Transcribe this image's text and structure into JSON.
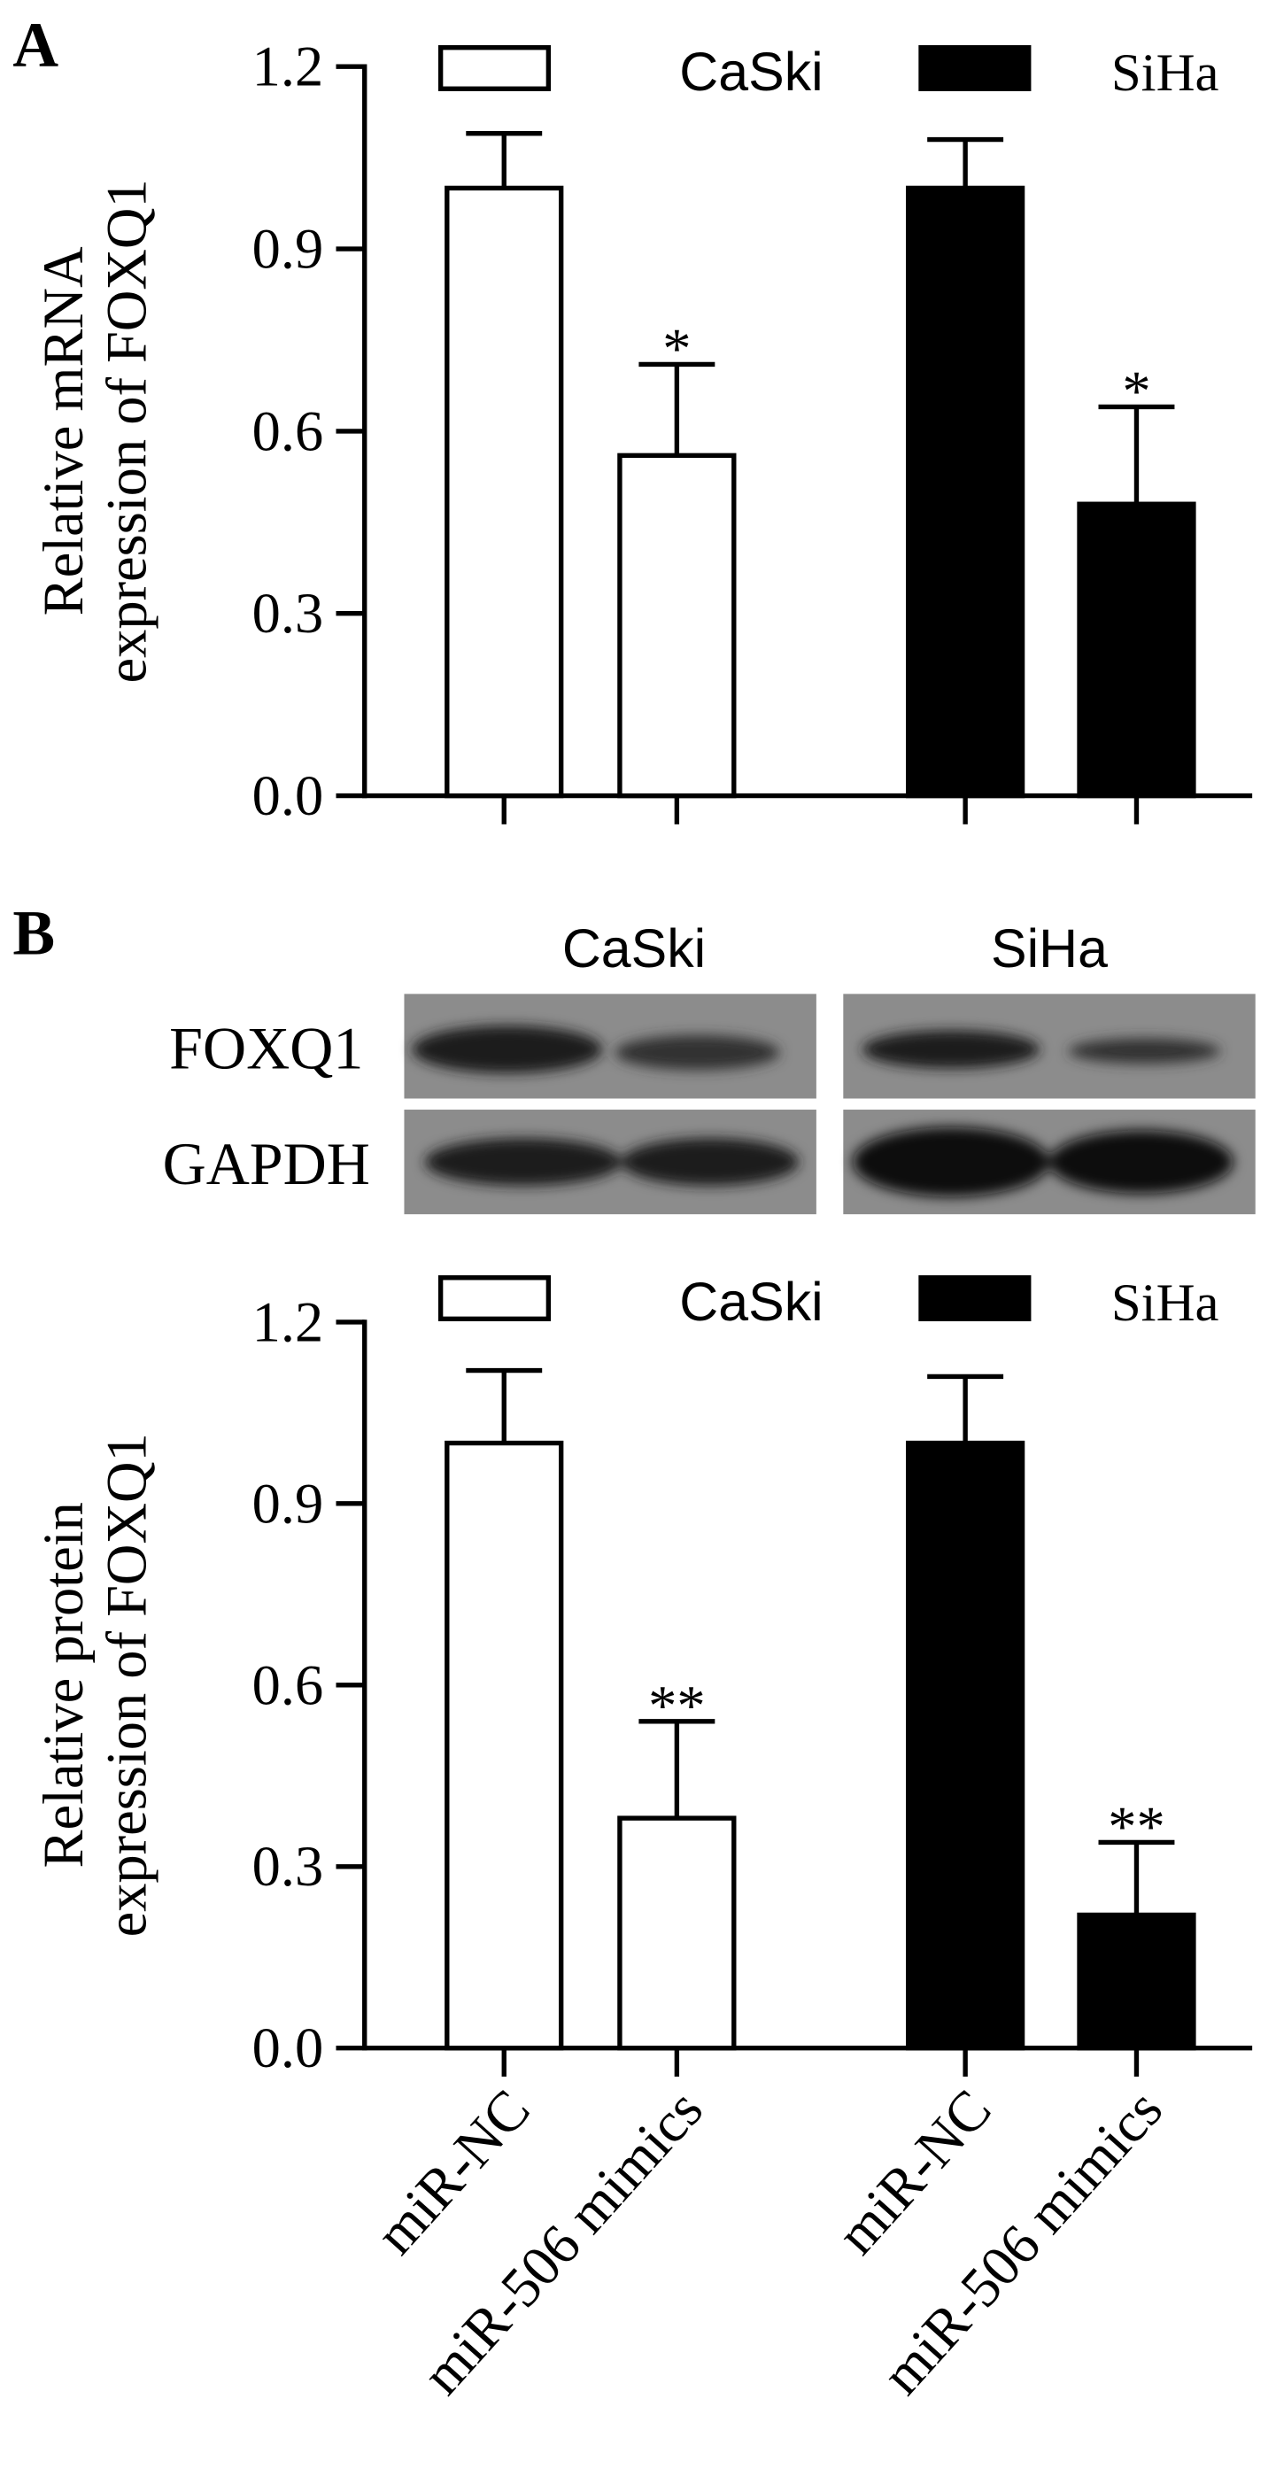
{
  "chart_data": [
    {
      "type": "bar",
      "panel_label": "A",
      "ylabel": [
        "Relative mRNA",
        "expression of FOXQ1"
      ],
      "categories": [
        null,
        null,
        null,
        null
      ],
      "series": [
        {
          "name": "CaSki",
          "color": "#ffffff",
          "values": [
            1.0,
            0.56,
            null,
            null
          ],
          "errors": [
            0.09,
            0.15,
            null,
            null
          ],
          "annotations": [
            null,
            "*",
            null,
            null
          ]
        },
        {
          "name": "SiHa",
          "color": "#000000",
          "values": [
            null,
            null,
            1.0,
            0.48
          ],
          "errors": [
            null,
            null,
            0.08,
            0.16
          ],
          "annotations": [
            null,
            null,
            null,
            "*"
          ]
        }
      ],
      "ylim": [
        0,
        1.2
      ],
      "yticks": [
        {
          "value": 0,
          "label": "0.0"
        },
        0.3,
        0.6,
        0.9,
        1.2
      ]
    },
    {
      "type": "bar",
      "panel_label": "B",
      "ylabel": [
        "Relative protein",
        "expression of FOXQ1"
      ],
      "categories": [
        "miR-NC",
        "miR-506 mimics",
        "miR-NC",
        "miR-506 mimics"
      ],
      "series": [
        {
          "name": "CaSki",
          "color": "#ffffff",
          "values": [
            1.0,
            0.38,
            null,
            null
          ],
          "errors": [
            0.12,
            0.16,
            null,
            null
          ],
          "annotations": [
            null,
            "**",
            null,
            null
          ]
        },
        {
          "name": "SiHa",
          "color": "#000000",
          "values": [
            null,
            null,
            1.0,
            0.22
          ],
          "errors": [
            null,
            null,
            0.11,
            0.12
          ],
          "annotations": [
            null,
            null,
            null,
            "**"
          ]
        }
      ],
      "ylim": [
        0,
        1.2
      ],
      "yticks": [
        {
          "value": 0,
          "label": "0.0"
        },
        0.3,
        0.6,
        0.9,
        1.2
      ]
    }
  ],
  "blot": {
    "columns": [
      "CaSki",
      "SiHa"
    ],
    "rows": [
      "FOXQ1",
      "GAPDH"
    ]
  }
}
